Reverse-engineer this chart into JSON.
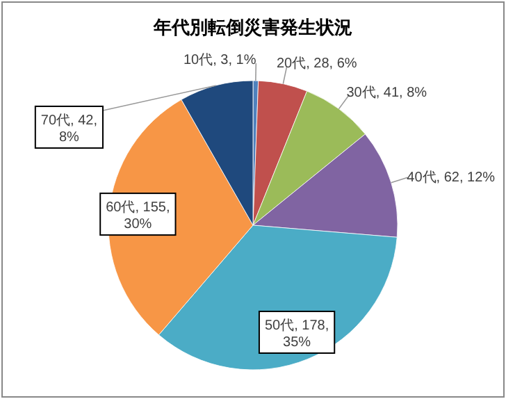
{
  "chart_data": {
    "type": "pie",
    "title": "年代別転倒災害発生状況",
    "categories": [
      "10代",
      "20代",
      "30代",
      "40代",
      "50代",
      "60代",
      "70代"
    ],
    "values": [
      3,
      28,
      41,
      62,
      178,
      155,
      42
    ],
    "value_labels": [
      "3, 1%",
      "28, 6%",
      "41, 8%",
      "62, 12%",
      "178, 35%",
      "155, 30%",
      "42, 8%"
    ],
    "colors": [
      "#4f81bd",
      "#c0504d",
      "#9bbb59",
      "#8064a2",
      "#4bacc6",
      "#f79646",
      "#1f497d"
    ],
    "legend": false
  }
}
